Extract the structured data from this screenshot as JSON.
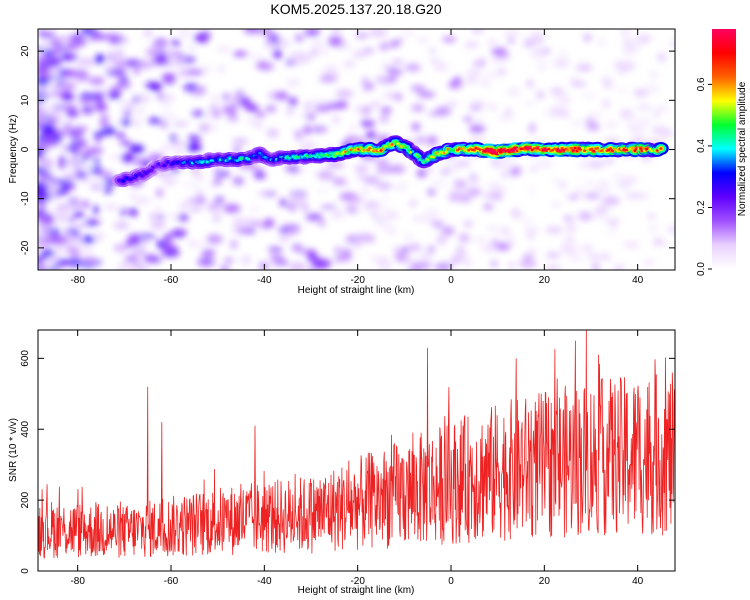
{
  "title": "KOM5.2025.137.20.18.G20",
  "chart_data": [
    {
      "type": "heatmap",
      "xlabel": "Height of straight line (km)",
      "ylabel": "Frequency (Hz)",
      "xlim": [
        -88.5,
        48
      ],
      "ylim": [
        -24.5,
        24.5
      ],
      "xticks": [
        -80,
        -60,
        -40,
        -20,
        0,
        20,
        40
      ],
      "yticks": [
        -20,
        -10,
        0,
        10,
        20
      ],
      "colorbar": {
        "label": "Normalized spectral amplitude",
        "range": [
          0.0,
          0.78
        ],
        "ticks": [
          0.0,
          0.2,
          0.4,
          0.6
        ],
        "colors": [
          "#ffffff",
          "#e9d0ff",
          "#a050ff",
          "#6000ff",
          "#0000ff",
          "#00ffff",
          "#00ff30",
          "#ffff00",
          "#ff6000",
          "#ff0000",
          "#ff0060"
        ]
      },
      "ridge": {
        "x": [
          -71,
          -66,
          -62,
          -58,
          -55,
          -50,
          -45,
          -41,
          -38,
          -35,
          -30,
          -25,
          -20,
          -15,
          -12,
          -9,
          -6,
          -3,
          0,
          5,
          10,
          15,
          20,
          25,
          30,
          35,
          40,
          45
        ],
        "y": [
          -6.5,
          -5,
          -3,
          -2.5,
          -2.5,
          -2,
          -2,
          -1,
          -2,
          -1.5,
          -1.5,
          -1,
          0,
          0,
          1.5,
          0,
          -2.5,
          -1,
          0,
          0,
          -0.5,
          0,
          0,
          0,
          0,
          0,
          0,
          0
        ],
        "amplitude": [
          0.25,
          0.22,
          0.2,
          0.25,
          0.3,
          0.3,
          0.33,
          0.28,
          0.3,
          0.32,
          0.35,
          0.4,
          0.5,
          0.55,
          0.45,
          0.4,
          0.35,
          0.45,
          0.45,
          0.55,
          0.7,
          0.6,
          0.6,
          0.6,
          0.55,
          0.55,
          0.55,
          0.5
        ]
      }
    },
    {
      "type": "line",
      "xlabel": "Height of straight line (km)",
      "ylabel": "SNR (10 * v/v)",
      "xlim": [
        -88.5,
        48
      ],
      "ylim": [
        0,
        680
      ],
      "xticks": [
        -80,
        -60,
        -40,
        -20,
        0,
        20,
        40
      ],
      "yticks": [
        0,
        200,
        400,
        600
      ],
      "color": "#ee2222",
      "trend_x": [
        -88.5,
        -70,
        -50,
        -30,
        -10,
        10,
        30,
        48
      ],
      "trend_y": [
        120,
        110,
        140,
        160,
        220,
        280,
        320,
        330
      ],
      "peaks_x": [
        -65,
        -62,
        -42,
        -5,
        14,
        29,
        47.5
      ],
      "peaks_y": [
        520,
        420,
        410,
        630,
        600,
        680,
        520
      ]
    }
  ]
}
